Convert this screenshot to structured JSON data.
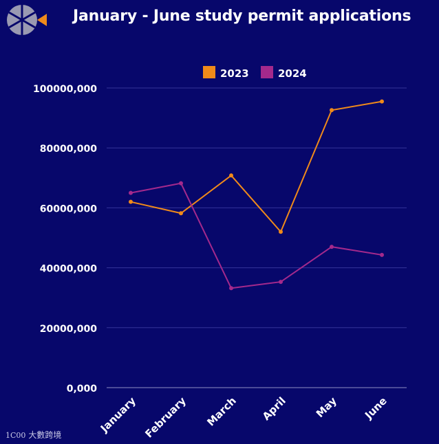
{
  "header": {
    "title": "January - June study permit applications"
  },
  "watermark": {
    "mark": "1C00",
    "text": "大數跨境"
  },
  "chart_data": {
    "type": "line",
    "categories": [
      "January",
      "February",
      "March",
      "April",
      "May",
      "June"
    ],
    "series": [
      {
        "name": "2023",
        "color": "#f08a1a",
        "values": [
          62000000,
          58200000,
          70800000,
          52000000,
          92600000,
          95500000
        ]
      },
      {
        "name": "2024",
        "color": "#a4298c",
        "values": [
          65000000,
          68200000,
          33200000,
          35300000,
          47000000,
          44300000
        ]
      }
    ],
    "yticks": [
      "0,000",
      "20000,000",
      "40000,000",
      "60000,000",
      "80000,000",
      "100000,000"
    ],
    "ylim": [
      0,
      100000000
    ],
    "grid": true,
    "legend": "top-center",
    "title": "January - June study permit applications"
  }
}
